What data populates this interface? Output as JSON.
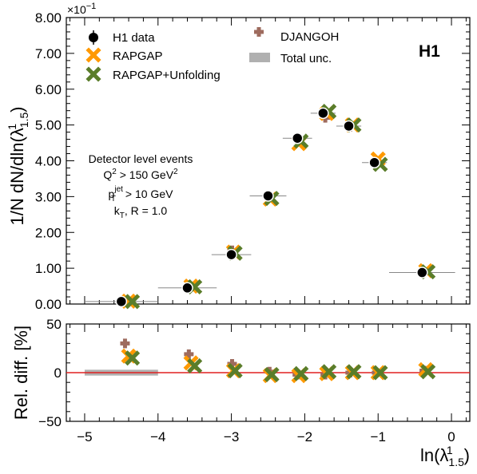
{
  "chart_data": [
    {
      "type": "scatter",
      "panel": "main",
      "ylabel": "1/N dN/dln(λ¹₁.₅)",
      "ylabel_parts": {
        "main": "1/N dN/dln(λ",
        "sup": "1",
        "sub": "1.5",
        "close": ")"
      },
      "y_exponent_label": "×10",
      "y_exponent_sup": "−1",
      "xlim": [
        -5.25,
        0.25
      ],
      "ylim": [
        0.0,
        8.0
      ],
      "yticks": [
        "0.00",
        "1.00",
        "2.00",
        "3.00",
        "4.00",
        "5.00",
        "6.00",
        "7.00",
        "8.00"
      ],
      "legend_position": "top-left",
      "legend": [
        {
          "label": "H1 data",
          "marker": "circle"
        },
        {
          "label": "RAPGAP",
          "marker": "x-orange"
        },
        {
          "label": "RAPGAP+Unfolding",
          "marker": "x-green"
        },
        {
          "label": "DJANGOH",
          "marker": "plus-brown"
        },
        {
          "label": "Total unc.",
          "marker": "band"
        }
      ],
      "annotation_lines": [
        "Detector level events",
        "Q² > 150 GeV²",
        "p_T^jet > 10 GeV",
        "k_T, R = 1.0"
      ],
      "annotation_parts": [
        {
          "main": "Detector level events"
        },
        {
          "main": "Q",
          "sup": "2",
          "rest": " > 150 GeV",
          "sup2": "2"
        },
        {
          "main": "p",
          "sup": "jet",
          "sub": "T",
          "rest": " > 10 GeV"
        },
        {
          "main": "k",
          "sub": "T",
          "rest": ", R = 1.0"
        }
      ],
      "brand": "H1",
      "colors": {
        "data": "#000000",
        "rapgap": "#ff9900",
        "unfolding": "#5a7d2a",
        "djangoh": "#9e6b5e",
        "band": "#b0b0b0",
        "ratio_line": "#e02020"
      },
      "series": [
        {
          "name": "H1 data",
          "x": [
            -4.5,
            -3.6,
            -3.0,
            -2.5,
            -2.1,
            -1.75,
            -1.4,
            -1.05,
            -0.4
          ],
          "y": [
            0.07,
            0.45,
            1.38,
            3.02,
            4.63,
            5.33,
            4.97,
            3.95,
            0.88
          ],
          "xerr": [
            0.5,
            0.4,
            0.27,
            0.25,
            0.2,
            0.17,
            0.17,
            0.17,
            0.45
          ]
        },
        {
          "name": "RAPGAP",
          "x": [
            -4.4,
            -3.55,
            -2.97,
            -2.47,
            -2.08,
            -1.7,
            -1.35,
            -1.0,
            -0.35
          ],
          "y": [
            0.08,
            0.5,
            1.45,
            2.93,
            4.48,
            5.32,
            5.0,
            4.05,
            0.93
          ]
        },
        {
          "name": "RAPGAP+Unfolding",
          "x": [
            -4.35,
            -3.5,
            -2.95,
            -2.45,
            -2.05,
            -1.67,
            -1.33,
            -0.97,
            -0.32
          ],
          "y": [
            0.07,
            0.48,
            1.42,
            2.95,
            4.55,
            5.38,
            5.0,
            3.9,
            0.9
          ]
        },
        {
          "name": "DJANGOH",
          "x": [
            -4.45,
            -3.58,
            -2.99,
            -2.48,
            -2.1,
            -1.72,
            -1.38,
            -1.02,
            -0.37
          ],
          "y": [
            0.09,
            0.53,
            1.5,
            3.0,
            4.6,
            5.2,
            4.95,
            3.97,
            0.9
          ]
        }
      ]
    },
    {
      "type": "scatter",
      "panel": "ratio",
      "ylabel": "Rel. diff. [%]",
      "xlabel": "ln(λ¹₁.₅)",
      "xlabel_parts": {
        "main": "ln(λ",
        "sup": "1",
        "sub": "1.5",
        "close": ")"
      },
      "xlim": [
        -5.25,
        0.25
      ],
      "ylim": [
        -50,
        50
      ],
      "yticks": [
        "−50",
        "0",
        "50"
      ],
      "xticks": [
        "−5",
        "−4",
        "−3",
        "−2",
        "−1",
        "0"
      ],
      "reference_line_y": 0,
      "band": {
        "x_from": -5.0,
        "x_to": -4.0,
        "y_from": -3,
        "y_to": 3
      },
      "series": [
        {
          "name": "RAPGAP",
          "x": [
            -4.4,
            -3.55,
            -2.97,
            -2.47,
            -2.08,
            -1.7,
            -1.35,
            -1.0,
            -0.35
          ],
          "y": [
            17,
            10,
            2,
            -3,
            -3,
            -1,
            0,
            0,
            3
          ]
        },
        {
          "name": "RAPGAP+Unfolding",
          "x": [
            -4.35,
            -3.5,
            -2.95,
            -2.45,
            -2.05,
            -1.67,
            -1.33,
            -0.97,
            -0.32
          ],
          "y": [
            15,
            7,
            2,
            -2,
            -1,
            1,
            1,
            0,
            1
          ]
        },
        {
          "name": "DJANGOH",
          "x": [
            -4.45,
            -3.58,
            -2.99,
            -2.48,
            -2.1,
            -1.72,
            -1.38,
            -1.02,
            -0.37
          ],
          "y": [
            30,
            19,
            9,
            1,
            -2,
            -2,
            0,
            0,
            2
          ]
        }
      ]
    }
  ]
}
